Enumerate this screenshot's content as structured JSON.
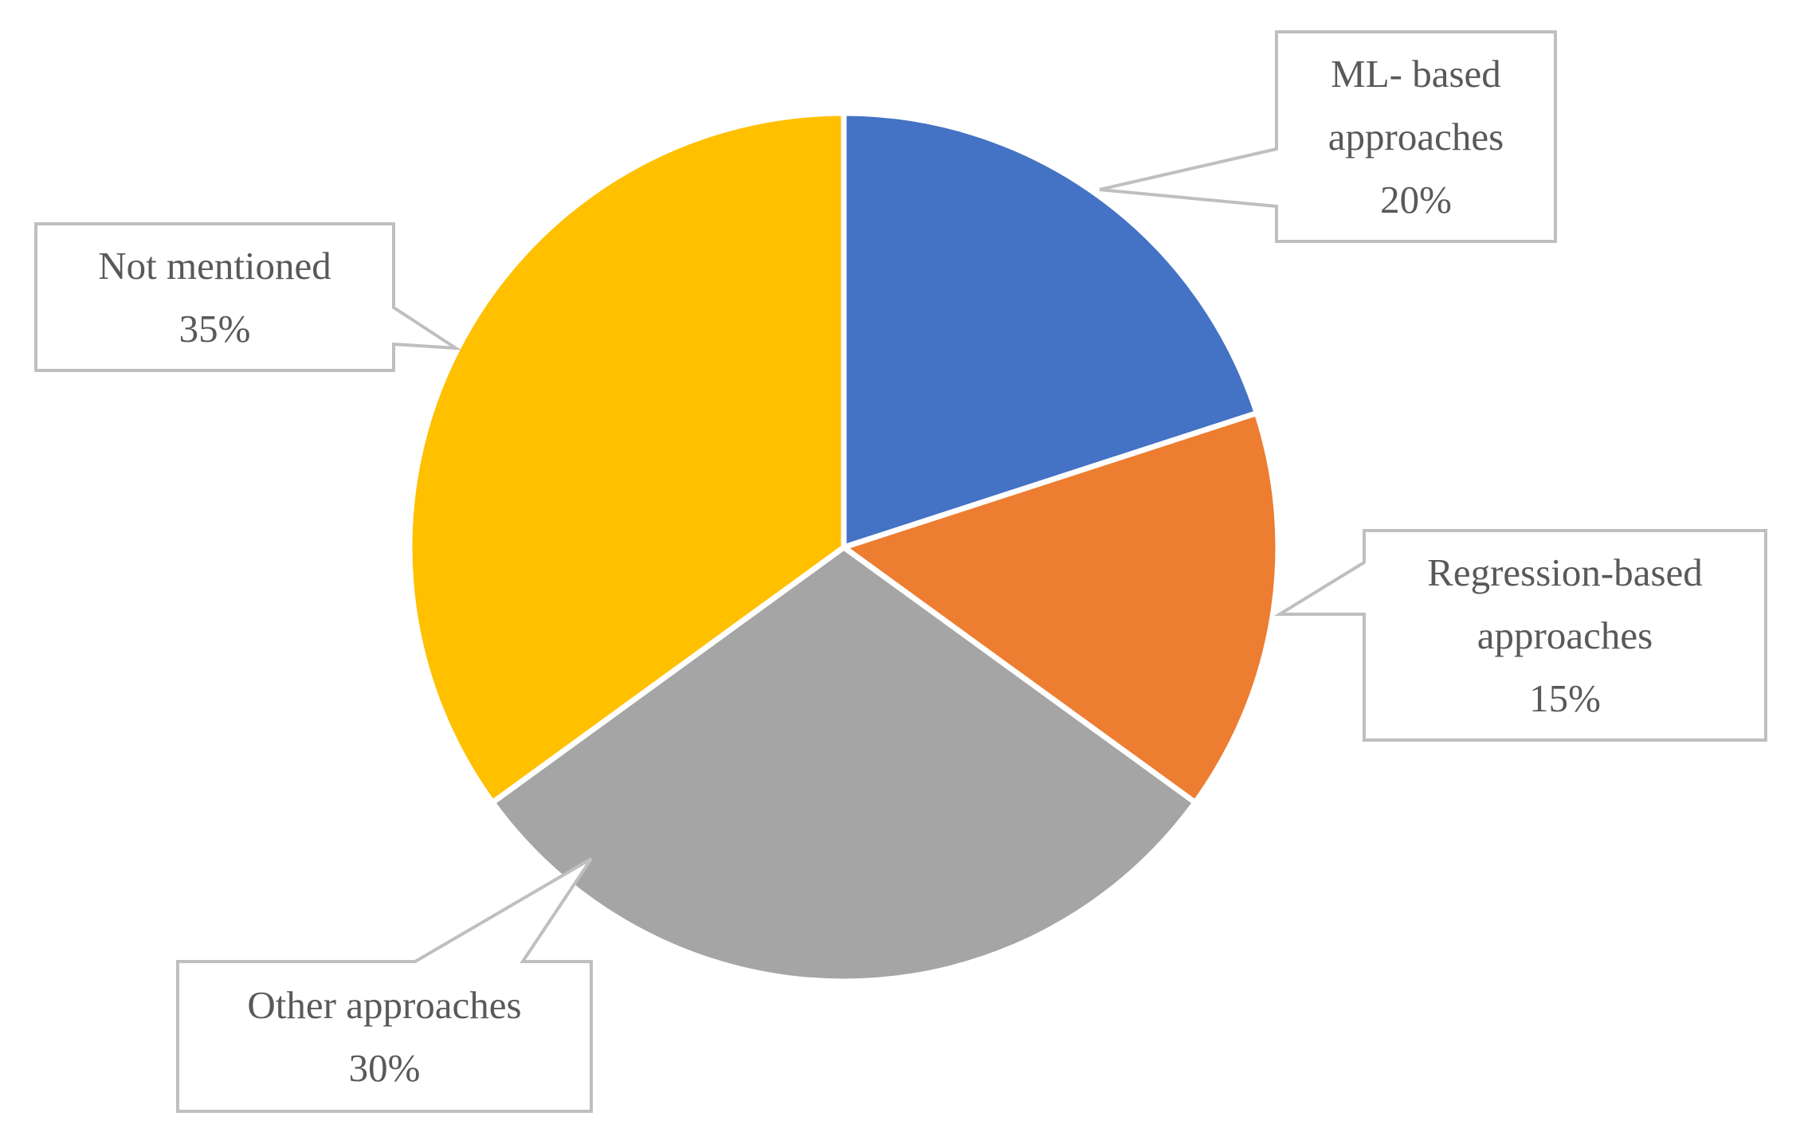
{
  "chart_data": {
    "type": "pie",
    "categories": [
      "ML- based approaches",
      "Regression-based approaches",
      "Other approaches",
      "Not mentioned"
    ],
    "values": [
      20,
      15,
      30,
      35
    ],
    "value_labels": [
      "20%",
      "15%",
      "30%",
      "35%"
    ],
    "colors": [
      "#4472c4",
      "#ed7d31",
      "#a5a5a5",
      "#ffc000"
    ]
  }
}
